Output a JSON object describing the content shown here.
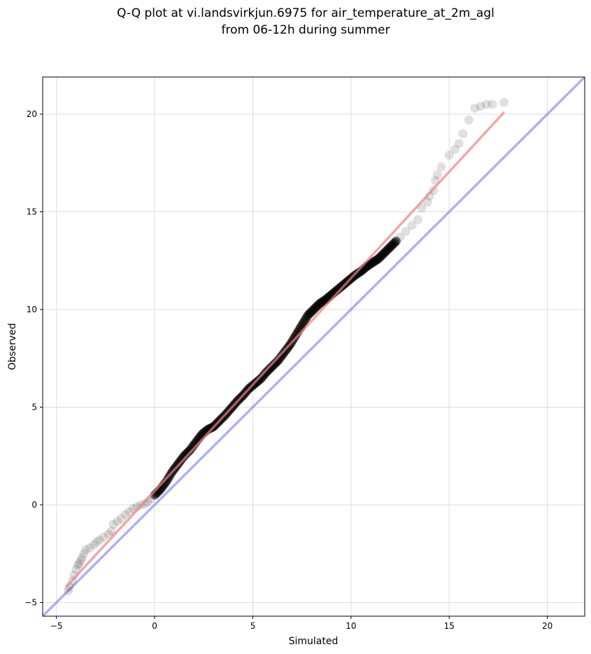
{
  "chart_data": {
    "type": "scatter",
    "title_line1": "Q-Q plot at vi.landsvirkjun.6975 for air_temperature_at_2m_agl",
    "title_line2": "from 06-12h during summer",
    "xlabel": "Simulated",
    "ylabel": "Observed",
    "xlim": [
      -5.7,
      21.9
    ],
    "ylim": [
      -5.7,
      21.9
    ],
    "xticks": [
      -5,
      0,
      5,
      10,
      15,
      20
    ],
    "yticks": [
      -5,
      0,
      5,
      10,
      15,
      20
    ],
    "grid": true,
    "colors": {
      "points": "#000000",
      "fit_line": "#f08080",
      "identity_line": "#7b7bea"
    },
    "fit_line": {
      "x": [
        -4.5,
        17.8
      ],
      "y": [
        -4.2,
        20.1
      ]
    },
    "identity_line": {
      "x": [
        -5.7,
        21.9
      ],
      "y": [
        -5.7,
        21.9
      ]
    },
    "points_sparse_low": {
      "x": [
        -4.4,
        -4.35,
        -4.2,
        -4.1,
        -4.0,
        -3.9,
        -3.85,
        -3.75,
        -3.7,
        -3.6,
        -3.5,
        -3.3,
        -3.1,
        -2.95,
        -2.8,
        -2.6,
        -2.35,
        -2.2,
        -2.1,
        -1.9,
        -1.7,
        -1.5,
        -1.3,
        -1.1,
        -0.9,
        -0.7,
        -0.5,
        -0.35,
        -0.2
      ],
      "y": [
        -4.4,
        -4.2,
        -3.9,
        -3.6,
        -3.3,
        -3.1,
        -3.0,
        -2.85,
        -2.7,
        -2.5,
        -2.3,
        -2.2,
        -2.05,
        -1.9,
        -1.8,
        -1.65,
        -1.5,
        -1.35,
        -1.0,
        -0.85,
        -0.7,
        -0.5,
        -0.35,
        -0.2,
        -0.1,
        0.0,
        0.05,
        0.15,
        0.3
      ]
    },
    "points_dense": {
      "x": [
        0.0,
        0.3,
        0.6,
        0.9,
        1.2,
        1.5,
        1.8,
        2.1,
        2.4,
        2.7,
        3.0,
        3.3,
        3.6,
        3.9,
        4.2,
        4.5,
        4.8,
        5.1,
        5.4,
        5.7,
        6.0,
        6.3,
        6.6,
        6.9,
        7.2,
        7.5,
        7.8,
        8.1,
        8.4,
        8.7,
        9.0,
        9.3,
        9.6,
        9.9,
        10.2,
        10.5,
        10.8,
        11.1,
        11.4,
        11.7,
        12.0,
        12.3
      ],
      "y": [
        0.5,
        0.8,
        1.2,
        1.7,
        2.1,
        2.5,
        2.8,
        3.2,
        3.6,
        3.85,
        4.0,
        4.3,
        4.6,
        4.95,
        5.3,
        5.6,
        5.95,
        6.2,
        6.45,
        6.8,
        7.1,
        7.4,
        7.8,
        8.2,
        8.7,
        9.2,
        9.7,
        10.0,
        10.3,
        10.5,
        10.75,
        11.0,
        11.25,
        11.5,
        11.75,
        11.95,
        12.2,
        12.4,
        12.6,
        12.9,
        13.2,
        13.5
      ]
    },
    "points_sparse_high": {
      "x": [
        12.5,
        12.8,
        13.1,
        13.4,
        13.6,
        13.9,
        14.0,
        14.2,
        14.3,
        14.4,
        14.6,
        15.0,
        15.3,
        15.5,
        15.7,
        16.0,
        16.3,
        16.6,
        16.9,
        17.2,
        17.8
      ],
      "y": [
        13.7,
        14.0,
        14.3,
        14.6,
        15.2,
        15.5,
        15.8,
        16.1,
        16.6,
        16.9,
        17.3,
        17.9,
        18.2,
        18.5,
        19.0,
        19.7,
        20.3,
        20.4,
        20.5,
        20.5,
        20.6
      ]
    }
  }
}
